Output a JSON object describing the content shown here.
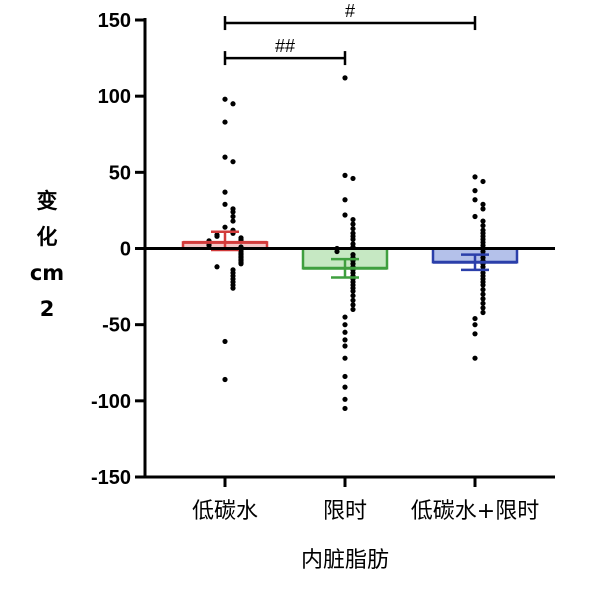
{
  "chart_data": {
    "type": "bar",
    "xlabel": "内脏脂肪",
    "ylabel_lines": [
      "变",
      "化",
      "cm",
      "2"
    ],
    "ylim": [
      -150,
      150
    ],
    "yticks": [
      150,
      100,
      50,
      0,
      -50,
      -100,
      -150
    ],
    "yticks_labels": [
      "150",
      "100",
      "50",
      "0",
      "-50",
      "-100",
      "-150"
    ],
    "grid": false,
    "categories": [
      "低碳水",
      "限时",
      "低碳水+限时"
    ],
    "series": [
      {
        "mean": 4,
        "sem_low": -1,
        "sem_high": 11,
        "color": "#d23b3b",
        "fill": "#f4c7c7",
        "points": [
          98,
          95,
          83,
          60,
          57,
          37,
          29,
          26,
          24,
          21,
          18,
          14,
          12,
          10,
          9,
          8,
          7,
          6,
          5,
          5,
          4,
          3,
          2,
          1,
          0,
          -1,
          -2,
          -3,
          -4,
          -5,
          -6,
          -7,
          -8,
          -9,
          -10,
          -12,
          -14,
          -16,
          -18,
          -20,
          -22,
          -24,
          -26,
          -61,
          -86
        ]
      },
      {
        "mean": -13,
        "sem_low": -19,
        "sem_high": -7,
        "color": "#3f9f3f",
        "fill": "#c6e8c3",
        "points": [
          112,
          48,
          46,
          32,
          22,
          19,
          16,
          13,
          10,
          8,
          6,
          3,
          1,
          0,
          -2,
          -4,
          -6,
          -8,
          -10,
          -12,
          -14,
          -16,
          -18,
          -20,
          -22,
          -24,
          -26,
          -28,
          -31,
          -34,
          -37,
          -40,
          -45,
          -50,
          -55,
          -60,
          -64,
          -72,
          -84,
          -91,
          -99,
          -105
        ]
      },
      {
        "mean": -9,
        "sem_low": -14,
        "sem_high": -4,
        "color": "#2b3faa",
        "fill": "#b4c1ea",
        "points": [
          47,
          44,
          38,
          32,
          29,
          26,
          21,
          18,
          15,
          12,
          10,
          8,
          6,
          4,
          2,
          0,
          -2,
          -4,
          -6,
          -8,
          -10,
          -12,
          -14,
          -16,
          -18,
          -20,
          -22,
          -24,
          -27,
          -30,
          -33,
          -36,
          -39,
          -42,
          -46,
          -50,
          -56,
          -72
        ]
      }
    ],
    "annotations": [
      {
        "label": "#",
        "from": "低碳水",
        "to": "低碳水+限时",
        "y": 148
      },
      {
        "label": "##",
        "from": "低碳水",
        "to": "限时",
        "y": 125
      }
    ]
  }
}
